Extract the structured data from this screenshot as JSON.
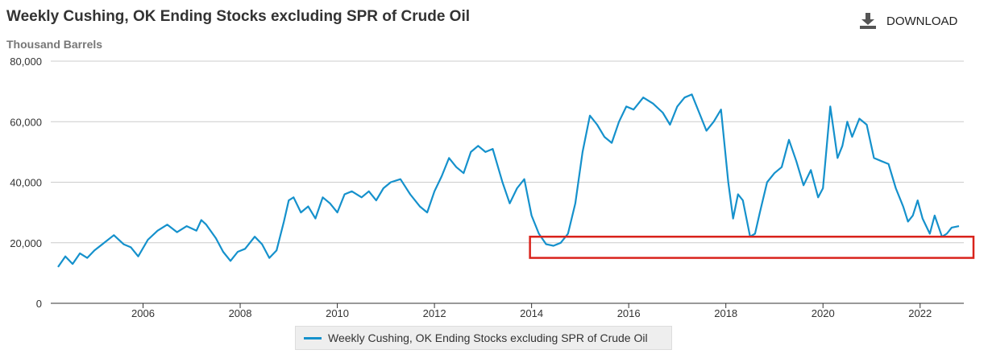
{
  "header": {
    "title": "Weekly Cushing, OK Ending Stocks excluding SPR of Crude Oil",
    "units": "Thousand Barrels",
    "download_label": "DOWNLOAD",
    "download_icon": "download-icon"
  },
  "colors": {
    "series": "#1591cc",
    "highlight_box": "#d9231c",
    "grid": "#cccccc"
  },
  "highlight": {
    "x_range": [
      2014.0,
      2022.9
    ],
    "y_range": [
      15000,
      22000
    ]
  },
  "chart_data": {
    "type": "line",
    "title": "Weekly Cushing, OK Ending Stocks excluding SPR of Crude Oil",
    "ylabel": "Thousand Barrels",
    "xlabel": "",
    "ylim": [
      0,
      80000
    ],
    "xlim": [
      2004.1,
      2022.9
    ],
    "y_ticks": [
      0,
      20000,
      40000,
      60000,
      80000
    ],
    "y_tick_labels": [
      "0",
      "20,000",
      "40,000",
      "60,000",
      "80,000"
    ],
    "x_ticks": [
      2006,
      2008,
      2010,
      2012,
      2014,
      2016,
      2018,
      2020,
      2022
    ],
    "x_tick_labels": [
      "2006",
      "2008",
      "2010",
      "2012",
      "2014",
      "2016",
      "2018",
      "2020",
      "2022"
    ],
    "grid": true,
    "legend_position": "bottom-center",
    "series": [
      {
        "name": "Weekly Cushing, OK Ending Stocks excluding SPR of Crude Oil",
        "x": [
          2004.25,
          2004.4,
          2004.55,
          2004.7,
          2004.85,
          2005.0,
          2005.2,
          2005.4,
          2005.6,
          2005.75,
          2005.9,
          2006.1,
          2006.3,
          2006.5,
          2006.7,
          2006.9,
          2007.1,
          2007.2,
          2007.3,
          2007.5,
          2007.65,
          2007.8,
          2007.95,
          2008.1,
          2008.3,
          2008.45,
          2008.6,
          2008.75,
          2008.9,
          2009.0,
          2009.1,
          2009.25,
          2009.4,
          2009.55,
          2009.7,
          2009.85,
          2010.0,
          2010.15,
          2010.3,
          2010.5,
          2010.65,
          2010.8,
          2010.95,
          2011.1,
          2011.3,
          2011.5,
          2011.7,
          2011.85,
          2012.0,
          2012.15,
          2012.3,
          2012.45,
          2012.6,
          2012.75,
          2012.9,
          2013.05,
          2013.2,
          2013.4,
          2013.55,
          2013.7,
          2013.85,
          2014.0,
          2014.15,
          2014.3,
          2014.45,
          2014.6,
          2014.75,
          2014.9,
          2015.05,
          2015.2,
          2015.35,
          2015.5,
          2015.65,
          2015.8,
          2015.95,
          2016.1,
          2016.3,
          2016.5,
          2016.7,
          2016.85,
          2017.0,
          2017.15,
          2017.3,
          2017.45,
          2017.6,
          2017.75,
          2017.9,
          2018.05,
          2018.15,
          2018.25,
          2018.35,
          2018.5,
          2018.6,
          2018.7,
          2018.85,
          2019.0,
          2019.15,
          2019.3,
          2019.45,
          2019.6,
          2019.75,
          2019.9,
          2020.0,
          2020.15,
          2020.3,
          2020.4,
          2020.5,
          2020.6,
          2020.75,
          2020.9,
          2021.05,
          2021.2,
          2021.35,
          2021.5,
          2021.65,
          2021.75,
          2021.85,
          2021.95,
          2022.05,
          2022.2,
          2022.3,
          2022.45,
          2022.55,
          2022.65,
          2022.8
        ],
        "values": [
          12000,
          15500,
          13000,
          16500,
          15000,
          17500,
          20000,
          22500,
          19500,
          18500,
          15500,
          21000,
          24000,
          26000,
          23500,
          25500,
          24000,
          27500,
          26000,
          21500,
          17000,
          14000,
          17000,
          18000,
          22000,
          19500,
          15000,
          17500,
          27000,
          34000,
          35000,
          30000,
          32000,
          28000,
          35000,
          33000,
          30000,
          36000,
          37000,
          35000,
          37000,
          34000,
          38000,
          40000,
          41000,
          36000,
          32000,
          30000,
          37000,
          42000,
          48000,
          45000,
          43000,
          50000,
          52000,
          50000,
          51000,
          40000,
          33000,
          38000,
          41000,
          29000,
          23000,
          19500,
          19000,
          20000,
          23000,
          33000,
          50000,
          62000,
          59000,
          55000,
          53000,
          60000,
          65000,
          64000,
          68000,
          66000,
          63000,
          59000,
          65000,
          68000,
          69000,
          63000,
          57000,
          60000,
          64000,
          40000,
          28000,
          36000,
          34000,
          22000,
          23000,
          30000,
          40000,
          43000,
          45000,
          54000,
          47000,
          39000,
          44000,
          35000,
          38000,
          65000,
          48000,
          52000,
          60000,
          55000,
          61000,
          59000,
          48000,
          47000,
          46000,
          38000,
          32000,
          27000,
          29000,
          34000,
          28000,
          23000,
          29000,
          22000,
          23000,
          25000,
          25500
        ]
      }
    ]
  },
  "legend": {
    "label": "Weekly Cushing, OK Ending Stocks excluding SPR of Crude Oil"
  }
}
